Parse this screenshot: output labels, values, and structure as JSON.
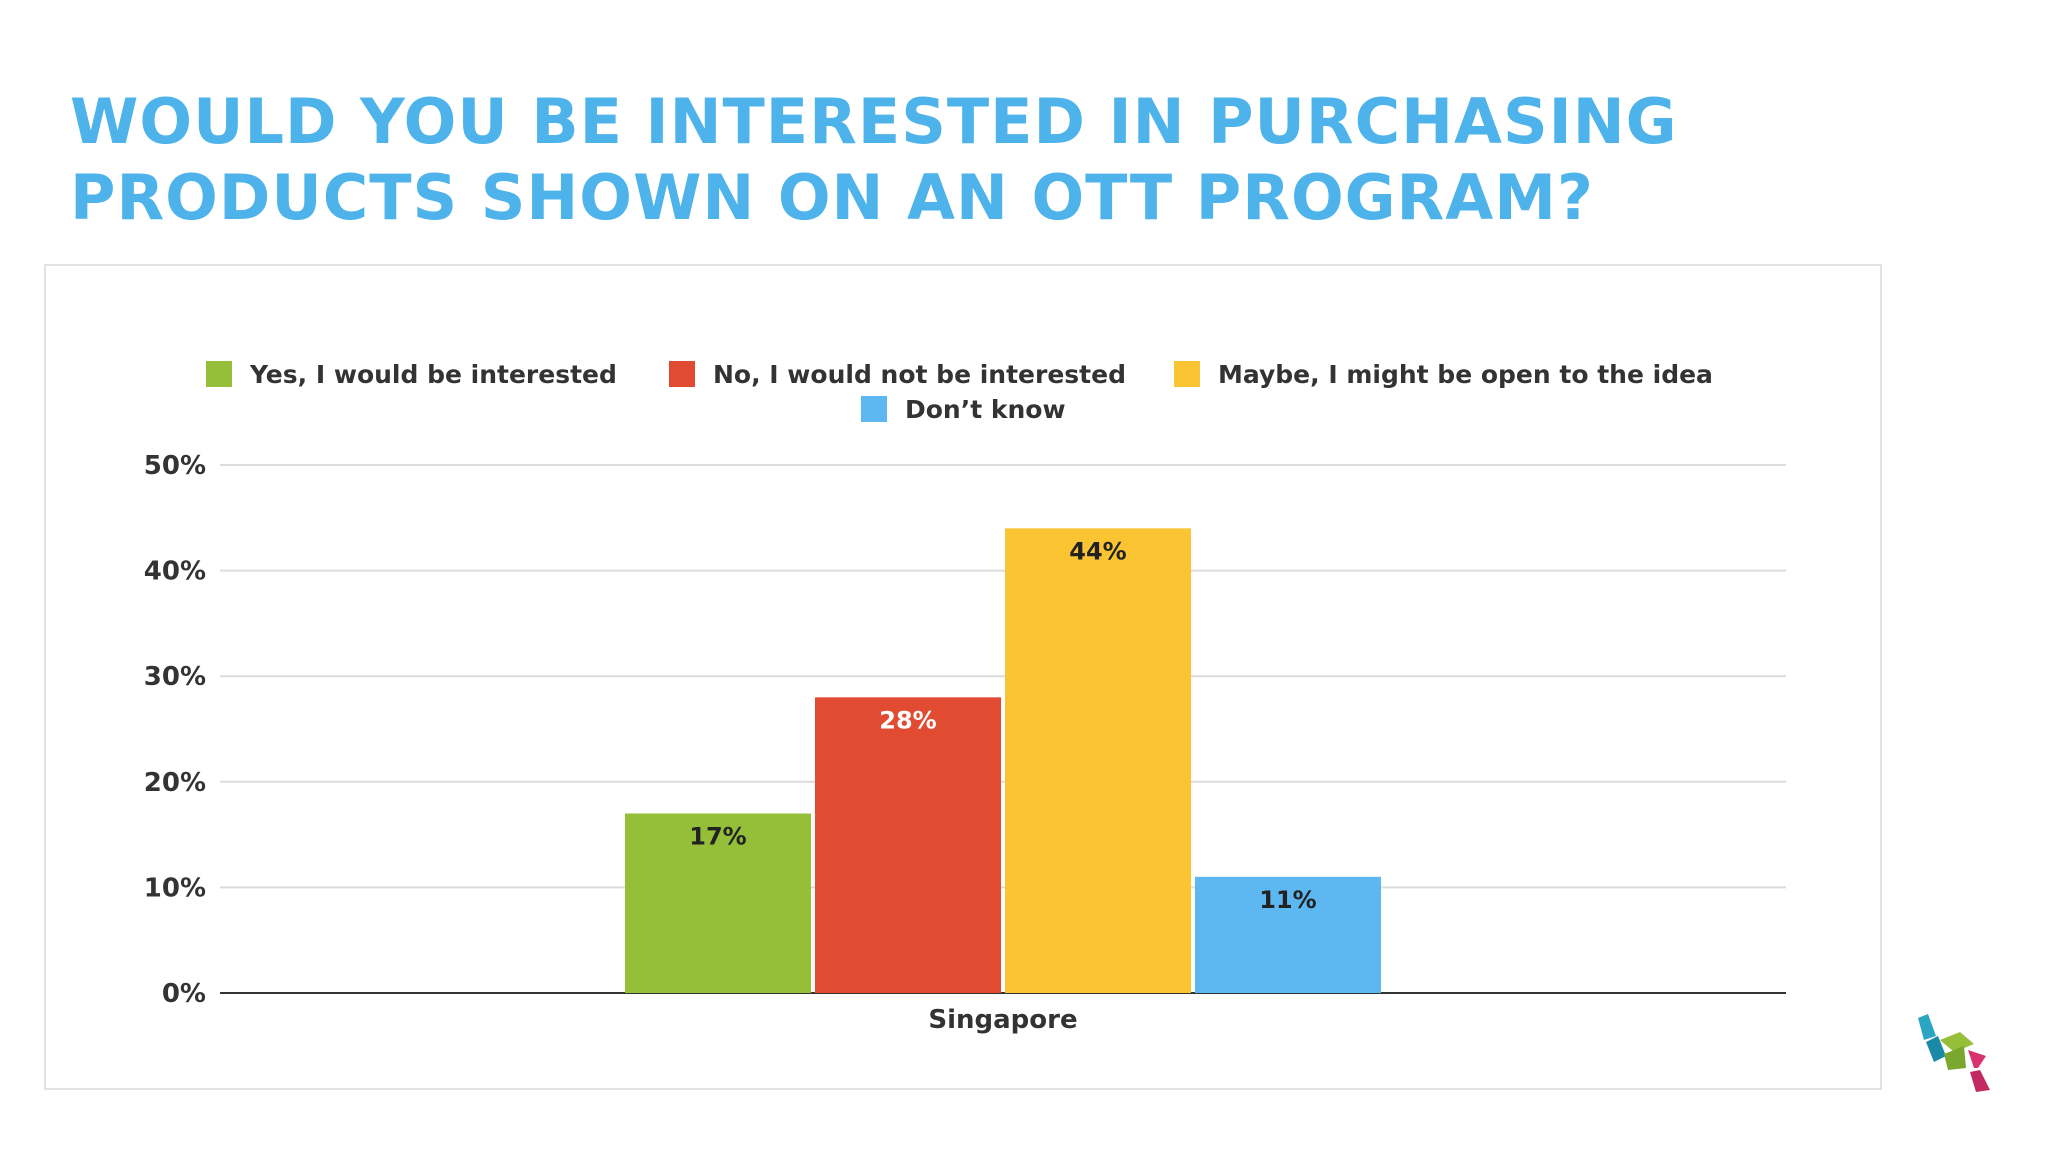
{
  "slide": {
    "title_line1": "WOULD YOU BE INTERESTED IN PURCHASING",
    "title_line2": "PRODUCTS SHOWN ON AN OTT PROGRAM?"
  },
  "colors": {
    "title": "#4db3ea",
    "yes": "#95be39",
    "no": "#e04b32",
    "maybe": "#fbc433",
    "dont_know": "#5db8f2",
    "grid": "#dcdcdc",
    "axis": "#333333"
  },
  "logo": {
    "icon": "company-logo-icon"
  },
  "chart_data": {
    "type": "bar",
    "categories": [
      "Singapore"
    ],
    "series": [
      {
        "name": "Yes, I would be interested",
        "values": [
          17
        ],
        "label": "17%",
        "color": "#95be39",
        "label_color": "#222222"
      },
      {
        "name": "No, I would not be interested",
        "values": [
          28
        ],
        "label": "28%",
        "color": "#e04b32",
        "label_color": "#ffffff"
      },
      {
        "name": "Maybe, I might be open to the idea",
        "values": [
          44
        ],
        "label": "44%",
        "color": "#fbc433",
        "label_color": "#222222"
      },
      {
        "name": "Don’t know",
        "values": [
          11
        ],
        "label": "11%",
        "color": "#5db8f2",
        "label_color": "#222222"
      }
    ],
    "yticks": [
      "0%",
      "10%",
      "20%",
      "30%",
      "40%",
      "50%"
    ],
    "ylim": [
      0,
      50
    ],
    "grid": true,
    "legend_position": "top-center"
  }
}
